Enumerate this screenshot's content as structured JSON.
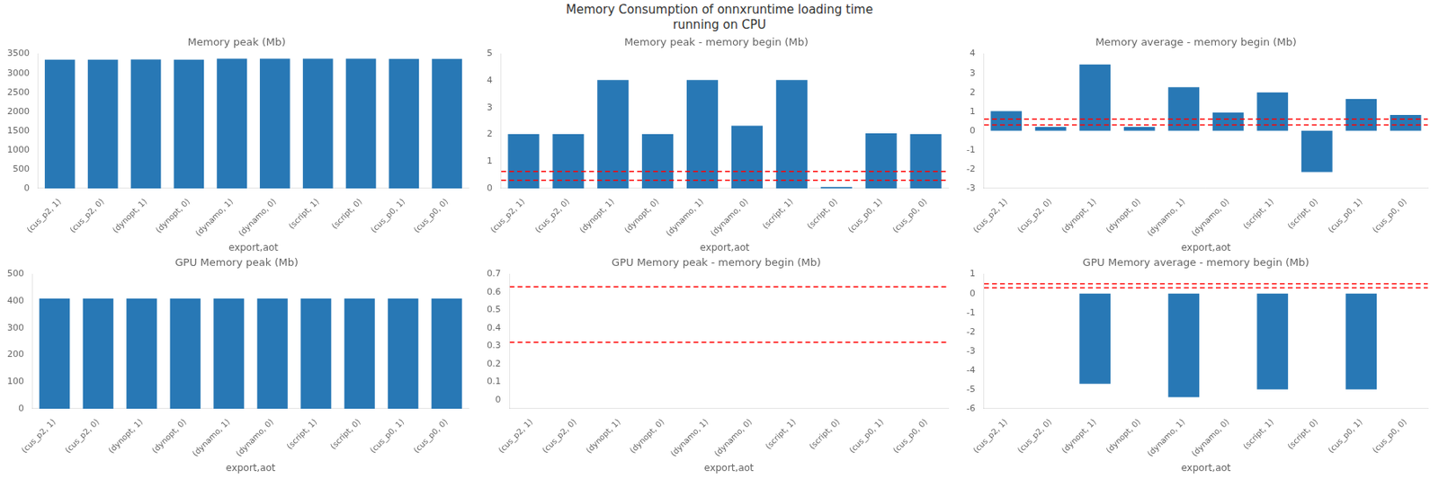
{
  "title": "Memory Consumption of onnxruntime loading time\nrunning on CPU",
  "chart_data": [
    {
      "type": "bar",
      "title": "Memory peak (Mb)",
      "xlabel": "export,aot",
      "categories": [
        "(cus_p2, 1)",
        "(cus_p2, 0)",
        "(dynopt, 1)",
        "(dynopt, 0)",
        "(dynamo, 1)",
        "(dynamo, 0)",
        "(script, 1)",
        "(script, 0)",
        "(cus_p0, 1)",
        "(cus_p0, 0)"
      ],
      "values": [
        3352,
        3352,
        3357,
        3352,
        3375,
        3375,
        3375,
        3375,
        3370,
        3370
      ],
      "color": "#2878b5",
      "ylim": [
        0,
        3500
      ],
      "yticks": [
        0,
        500,
        1000,
        1500,
        2000,
        2500,
        3000,
        3500
      ],
      "grid": false
    },
    {
      "type": "bar",
      "title": "Memory peak - memory begin (Mb)",
      "xlabel": "export,aot",
      "categories": [
        "(cus_p2, 1)",
        "(cus_p2, 0)",
        "(dynopt, 1)",
        "(dynopt, 0)",
        "(dynamo, 1)",
        "(dynamo, 0)",
        "(script, 1)",
        "(script, 0)",
        "(cus_p0, 1)",
        "(cus_p0, 0)"
      ],
      "values": [
        2.02,
        2.02,
        4.03,
        2.02,
        4.03,
        2.33,
        4.03,
        0.05,
        2.05,
        2.02
      ],
      "color": "#2878b5",
      "ylim": [
        0,
        5
      ],
      "yticks": [
        0,
        1,
        2,
        3,
        4,
        5
      ],
      "grid": false,
      "hlines": [
        {
          "value": 0.63,
          "color": "red",
          "line_style": "dashed"
        },
        {
          "value": 0.3,
          "color": "red",
          "line_style": "dashed"
        }
      ]
    },
    {
      "type": "bar",
      "title": "Memory average - memory begin (Mb)",
      "xlabel": "export,aot",
      "categories": [
        "(cus_p2, 1)",
        "(cus_p2, 0)",
        "(dynopt, 1)",
        "(dynopt, 0)",
        "(dynamo, 1)",
        "(dynamo, 0)",
        "(script, 1)",
        "(script, 0)",
        "(cus_p0, 1)",
        "(cus_p0, 0)"
      ],
      "values": [
        1.02,
        0.2,
        3.45,
        0.2,
        2.27,
        0.95,
        2.0,
        -2.15,
        1.65,
        0.82
      ],
      "color": "#2878b5",
      "ylim": [
        -3,
        4
      ],
      "yticks": [
        -3,
        -2,
        -1,
        0,
        1,
        2,
        3,
        4
      ],
      "grid": false,
      "hlines": [
        {
          "value": 0.6,
          "color": "red",
          "line_style": "dashed"
        },
        {
          "value": 0.3,
          "color": "red",
          "line_style": "dashed"
        }
      ]
    },
    {
      "type": "bar",
      "title": "GPU Memory peak (Mb)",
      "xlabel": "export,aot",
      "categories": [
        "(cus_p2, 1)",
        "(cus_p2, 0)",
        "(dynopt, 1)",
        "(dynopt, 0)",
        "(dynamo, 1)",
        "(dynamo, 0)",
        "(script, 1)",
        "(script, 0)",
        "(cus_p0, 1)",
        "(cus_p0, 0)"
      ],
      "values": [
        410,
        410,
        410,
        410,
        410,
        410,
        410,
        410,
        410,
        410
      ],
      "color": "#2878b5",
      "ylim": [
        0,
        500
      ],
      "yticks": [
        0,
        100,
        200,
        300,
        400,
        500
      ],
      "grid": false
    },
    {
      "type": "bar",
      "title": "GPU Memory peak - memory begin (Mb)",
      "xlabel": "export,aot",
      "categories": [
        "(cus_p2, 1)",
        "(cus_p2, 0)",
        "(dynopt, 1)",
        "(dynopt, 0)",
        "(dynamo, 1)",
        "(dynamo, 0)",
        "(script, 1)",
        "(script, 0)",
        "(cus_p0, 1)",
        "(cus_p0, 0)"
      ],
      "values": [
        0.0,
        0.0,
        0.0,
        0.0,
        0.0,
        0.0,
        0.0,
        0.0,
        0.0,
        0.0
      ],
      "color": "#2878b5",
      "ylim": [
        -0.05,
        0.7
      ],
      "yticks": [
        0,
        0.1,
        0.2,
        0.3,
        0.4,
        0.5,
        0.6,
        0.7
      ],
      "grid": false,
      "hlines": [
        {
          "value": 0.63,
          "color": "red",
          "line_style": "dashed"
        },
        {
          "value": 0.32,
          "color": "red",
          "line_style": "dashed"
        }
      ]
    },
    {
      "type": "bar",
      "title": "GPU Memory average - memory begin (Mb)",
      "xlabel": "export,aot",
      "categories": [
        "(cus_p2, 1)",
        "(cus_p2, 0)",
        "(dynopt, 1)",
        "(dynopt, 0)",
        "(dynamo, 1)",
        "(dynamo, 0)",
        "(script, 1)",
        "(script, 0)",
        "(cus_p0, 1)",
        "(cus_p0, 0)"
      ],
      "values": [
        0.0,
        0.0,
        -4.7,
        0.0,
        -5.4,
        0.0,
        -5.0,
        0.0,
        -5.0,
        0.0
      ],
      "color": "#2878b5",
      "ylim": [
        -6,
        1
      ],
      "yticks": [
        -6,
        -5,
        -4,
        -3,
        -2,
        -1,
        0,
        1
      ],
      "grid": false,
      "hlines": [
        {
          "value": 0.5,
          "color": "red",
          "line_style": "dashed"
        },
        {
          "value": 0.3,
          "color": "red",
          "line_style": "dashed"
        }
      ]
    }
  ]
}
